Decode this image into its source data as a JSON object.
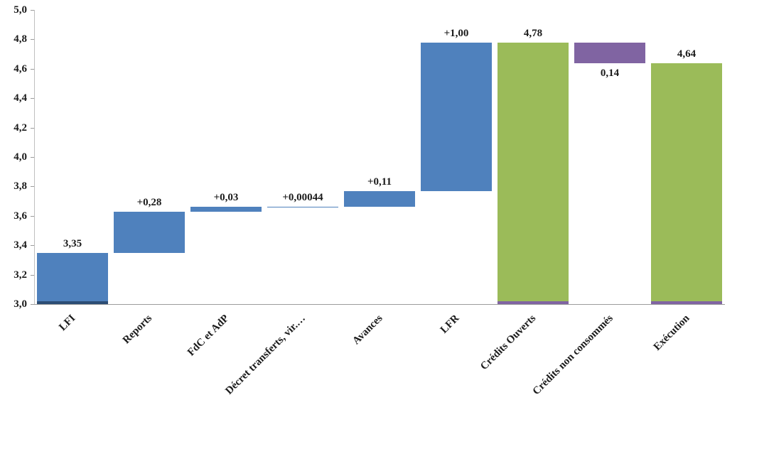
{
  "chart_data": {
    "type": "bar",
    "subtype": "waterfall",
    "title": "",
    "xlabel": "",
    "ylabel": "",
    "ylim": [
      3.0,
      5.0
    ],
    "ytick_step": 0.2,
    "decimal_separator": ",",
    "grid": false,
    "legend": false,
    "categories": [
      "LFI",
      "Reports",
      "FdC et AdP",
      "Décret transferts, vir.…",
      "Avances",
      "LFR",
      "Crédits Ouverts",
      "Crédits non consommés",
      "Exécution"
    ],
    "bars": [
      {
        "category": "LFI",
        "from": 3.0,
        "to": 3.35,
        "color": "blue",
        "value_label": "3,35",
        "label_pos": "above",
        "strip": "blue_dark"
      },
      {
        "category": "Reports",
        "from": 3.35,
        "to": 3.63,
        "color": "blue",
        "value_label": "+0,28",
        "label_pos": "above",
        "strip": null
      },
      {
        "category": "FdC et AdP",
        "from": 3.63,
        "to": 3.66,
        "color": "blue",
        "value_label": "+0,03",
        "label_pos": "above",
        "strip": null
      },
      {
        "category": "Décret transferts, vir.…",
        "from": 3.66,
        "to": 3.66044,
        "color": "blue",
        "value_label": "+0,00044",
        "label_pos": "above",
        "strip": null
      },
      {
        "category": "Avances",
        "from": 3.66,
        "to": 3.77,
        "color": "blue",
        "value_label": "+0,11",
        "label_pos": "above",
        "strip": null
      },
      {
        "category": "LFR",
        "from": 3.77,
        "to": 4.78,
        "color": "blue",
        "value_label": "+1,00",
        "label_pos": "above",
        "strip": null
      },
      {
        "category": "Crédits Ouverts",
        "from": 3.0,
        "to": 4.78,
        "color": "green",
        "value_label": "4,78",
        "label_pos": "above",
        "strip": "purple"
      },
      {
        "category": "Crédits non consommés",
        "from": 4.64,
        "to": 4.78,
        "color": "purple",
        "value_label": "0,14",
        "label_pos": "below",
        "strip": null
      },
      {
        "category": "Exécution",
        "from": 3.0,
        "to": 4.64,
        "color": "green",
        "value_label": "4,64",
        "label_pos": "above",
        "strip": "purple"
      }
    ],
    "colors": {
      "blue": "#4F81BD",
      "green": "#9BBB59",
      "purple": "#8064A2",
      "blue_dark": "#2C4D75",
      "axis": "#9c9c9c"
    }
  }
}
